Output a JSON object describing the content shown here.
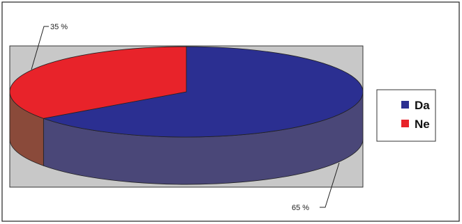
{
  "chart_data": {
    "type": "pie",
    "title": "",
    "slices": [
      {
        "label": "Da",
        "value": 65,
        "label_text": "65 %"
      },
      {
        "label": "Ne",
        "value": 35,
        "label_text": "35 %"
      }
    ],
    "legend": {
      "placement": "right",
      "entries": [
        "Da",
        "Ne"
      ]
    },
    "colors": {
      "Da": "#2b2f91",
      "Ne": "#e8232a",
      "Da_side": "#4a4778",
      "Ne_side": "#8a4a3a",
      "plot_area": "#c8c8c8"
    }
  }
}
